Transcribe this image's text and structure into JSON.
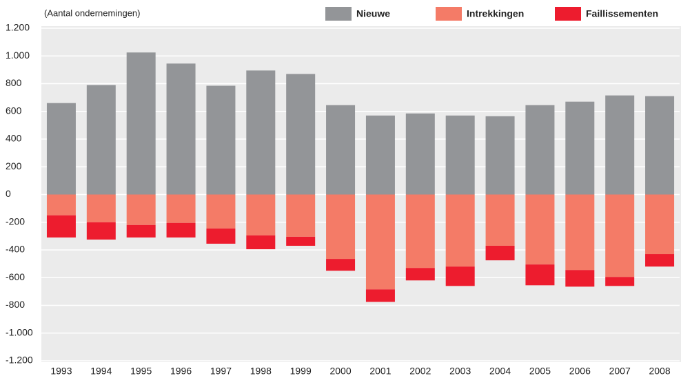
{
  "chart_data": {
    "type": "bar",
    "stacked": true,
    "annotation": "(Aantal ondernemingen)",
    "categories": [
      "1993",
      "1994",
      "1995",
      "1996",
      "1997",
      "1998",
      "1999",
      "2000",
      "2001",
      "2002",
      "2003",
      "2004",
      "2005",
      "2006",
      "2007",
      "2008"
    ],
    "series": [
      {
        "name": "Nieuwe",
        "color": "#939598",
        "values": [
          660,
          790,
          1025,
          945,
          785,
          895,
          870,
          645,
          570,
          585,
          570,
          565,
          645,
          670,
          715,
          710
        ]
      },
      {
        "name": "Intrekkingen",
        "color": "#f47b67",
        "values": [
          -150,
          -200,
          -220,
          -205,
          -245,
          -295,
          -305,
          -465,
          -685,
          -530,
          -520,
          -370,
          -505,
          -545,
          -595,
          -430
        ]
      },
      {
        "name": "Faillissementen",
        "color": "#ed1c2e",
        "values": [
          -160,
          -125,
          -90,
          -105,
          -110,
          -100,
          -65,
          -85,
          -90,
          -90,
          -140,
          -105,
          -150,
          -120,
          -65,
          -90
        ]
      }
    ],
    "ylim": [
      -1200,
      1200
    ],
    "yticks": [
      {
        "value": -1200,
        "label": "-1.200"
      },
      {
        "value": -1000,
        "label": "-1.000"
      },
      -800,
      -600,
      -400,
      -200,
      0,
      200,
      400,
      600,
      800,
      {
        "value": 1000,
        "label": "1.000"
      },
      {
        "value": 1200,
        "label": "1.200"
      }
    ],
    "grid": true
  }
}
